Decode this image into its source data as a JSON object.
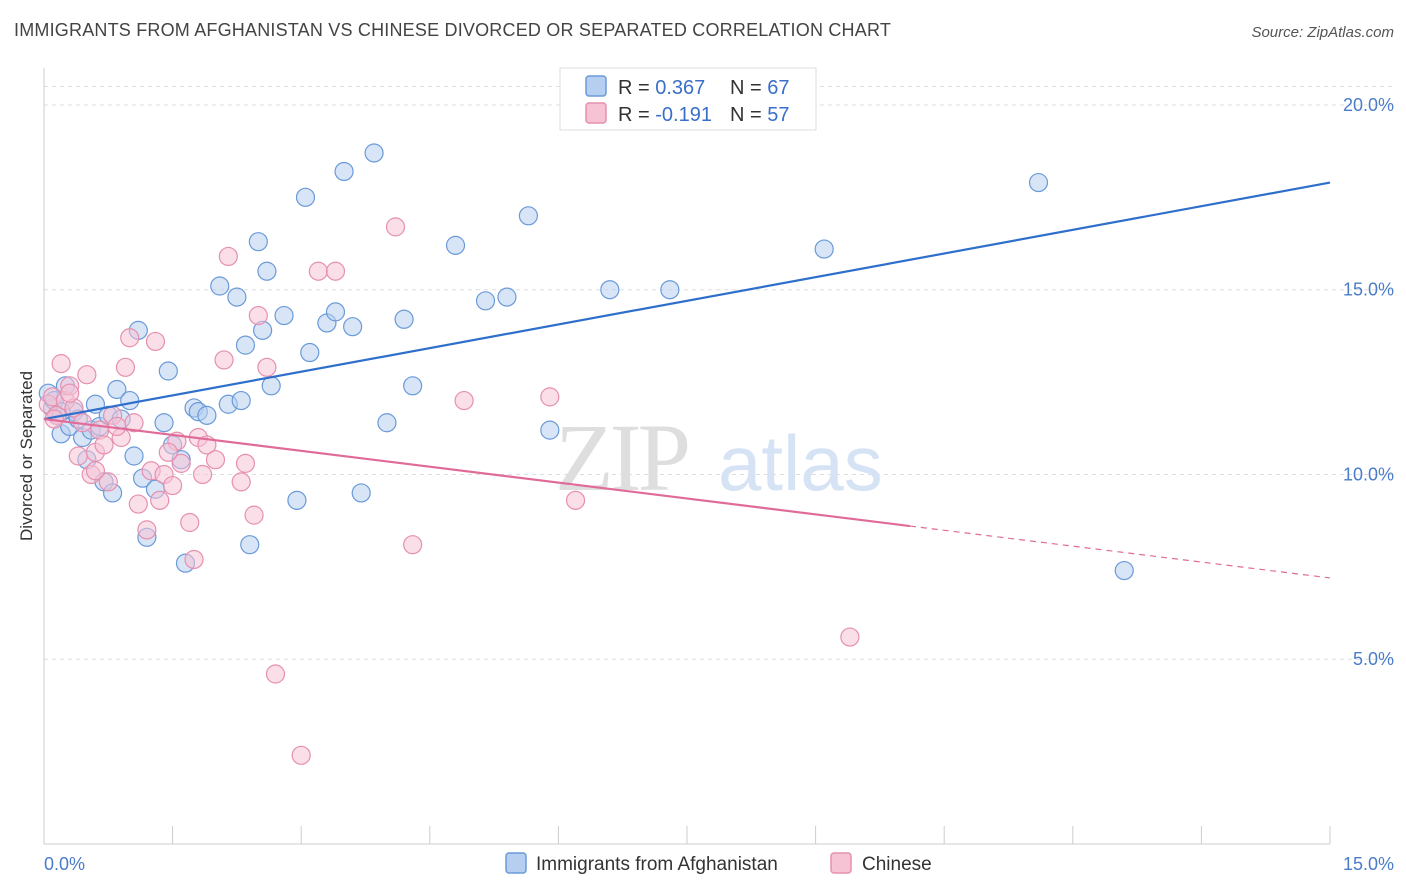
{
  "title": "IMMIGRANTS FROM AFGHANISTAN VS CHINESE DIVORCED OR SEPARATED CORRELATION CHART",
  "source": "Source: ZipAtlas.com",
  "watermark": {
    "zip": "ZIP",
    "atlas": "atlas"
  },
  "colors": {
    "blue_fill": "#b6cff0",
    "blue_stroke": "#6a9ad8",
    "blue_line": "#2f6fcc",
    "pink_fill": "#f6c3d5",
    "pink_stroke": "#e690b0",
    "pink_line": "#e06a98",
    "tick_text": "#4a7cc9",
    "grid": "#dddddd"
  },
  "chart_data": {
    "type": "scatter",
    "title": "IMMIGRANTS FROM AFGHANISTAN VS CHINESE DIVORCED OR SEPARATED CORRELATION CHART",
    "xlabel": "",
    "ylabel": "Divorced or Separated",
    "xlim": [
      0,
      15
    ],
    "ylim": [
      0,
      21
    ],
    "x_tick_labels": [
      "0.0%",
      "15.0%"
    ],
    "y_ticks": [
      5,
      10,
      15,
      20
    ],
    "y_tick_labels": [
      "5.0%",
      "10.0%",
      "15.0%",
      "20.0%"
    ],
    "grid": true,
    "legend_top": [
      {
        "r_label": "R = ",
        "r_value": "0.367",
        "n_label": "N = ",
        "n_value": "67"
      },
      {
        "r_label": "R = ",
        "r_value": "-0.191",
        "n_label": "N = ",
        "n_value": "57"
      }
    ],
    "legend_position": "top-center",
    "series": [
      {
        "name": "Immigrants from Afghanistan",
        "color": "#6a9ad8",
        "trend": {
          "x": [
            0,
            15
          ],
          "y": [
            11.5,
            17.9
          ],
          "dashed_from": null
        },
        "points": [
          [
            0.05,
            12.2
          ],
          [
            0.1,
            11.8
          ],
          [
            0.12,
            12.0
          ],
          [
            0.15,
            11.6
          ],
          [
            0.2,
            11.1
          ],
          [
            0.25,
            12.4
          ],
          [
            0.3,
            11.3
          ],
          [
            0.35,
            11.7
          ],
          [
            0.4,
            11.5
          ],
          [
            0.45,
            11.0
          ],
          [
            0.5,
            10.4
          ],
          [
            0.55,
            11.2
          ],
          [
            0.6,
            11.9
          ],
          [
            0.65,
            11.3
          ],
          [
            0.7,
            9.8
          ],
          [
            0.75,
            11.6
          ],
          [
            0.8,
            9.5
          ],
          [
            0.85,
            12.3
          ],
          [
            0.9,
            11.5
          ],
          [
            1.0,
            12.0
          ],
          [
            1.05,
            10.5
          ],
          [
            1.1,
            13.9
          ],
          [
            1.15,
            9.9
          ],
          [
            1.2,
            8.3
          ],
          [
            1.3,
            9.6
          ],
          [
            1.4,
            11.4
          ],
          [
            1.45,
            12.8
          ],
          [
            1.5,
            10.8
          ],
          [
            1.6,
            10.4
          ],
          [
            1.65,
            7.6
          ],
          [
            1.75,
            11.8
          ],
          [
            1.8,
            11.7
          ],
          [
            1.9,
            11.6
          ],
          [
            2.05,
            15.1
          ],
          [
            2.15,
            11.9
          ],
          [
            2.25,
            14.8
          ],
          [
            2.3,
            12.0
          ],
          [
            2.35,
            13.5
          ],
          [
            2.4,
            8.1
          ],
          [
            2.5,
            16.3
          ],
          [
            2.55,
            13.9
          ],
          [
            2.6,
            15.5
          ],
          [
            2.65,
            12.4
          ],
          [
            2.8,
            14.3
          ],
          [
            2.95,
            9.3
          ],
          [
            3.05,
            17.5
          ],
          [
            3.1,
            13.3
          ],
          [
            3.3,
            14.1
          ],
          [
            3.4,
            14.4
          ],
          [
            3.5,
            18.2
          ],
          [
            3.6,
            14.0
          ],
          [
            3.7,
            9.5
          ],
          [
            3.85,
            18.7
          ],
          [
            4.0,
            11.4
          ],
          [
            4.2,
            14.2
          ],
          [
            4.3,
            12.4
          ],
          [
            4.8,
            16.2
          ],
          [
            5.15,
            14.7
          ],
          [
            5.4,
            14.8
          ],
          [
            5.65,
            17.0
          ],
          [
            5.9,
            11.2
          ],
          [
            6.6,
            15.0
          ],
          [
            7.3,
            15.0
          ],
          [
            9.1,
            16.1
          ],
          [
            11.6,
            17.9
          ],
          [
            12.6,
            7.4
          ],
          [
            0.2,
            11.7
          ]
        ]
      },
      {
        "name": "Chinese",
        "color": "#e690b0",
        "trend": {
          "x": [
            0,
            15
          ],
          "y": [
            11.5,
            7.2
          ],
          "dashed_from": 10.1
        },
        "points": [
          [
            0.05,
            11.9
          ],
          [
            0.1,
            12.1
          ],
          [
            0.15,
            11.6
          ],
          [
            0.2,
            13.0
          ],
          [
            0.25,
            12.0
          ],
          [
            0.3,
            12.4
          ],
          [
            0.35,
            11.8
          ],
          [
            0.4,
            10.5
          ],
          [
            0.45,
            11.4
          ],
          [
            0.5,
            12.7
          ],
          [
            0.55,
            10.0
          ],
          [
            0.6,
            10.6
          ],
          [
            0.65,
            11.2
          ],
          [
            0.7,
            10.8
          ],
          [
            0.75,
            9.8
          ],
          [
            0.8,
            11.6
          ],
          [
            0.9,
            11.0
          ],
          [
            0.95,
            12.9
          ],
          [
            1.0,
            13.7
          ],
          [
            1.1,
            9.2
          ],
          [
            1.2,
            8.5
          ],
          [
            1.25,
            10.1
          ],
          [
            1.3,
            13.6
          ],
          [
            1.35,
            9.3
          ],
          [
            1.4,
            10.0
          ],
          [
            1.5,
            9.7
          ],
          [
            1.55,
            10.9
          ],
          [
            1.6,
            10.3
          ],
          [
            1.7,
            8.7
          ],
          [
            1.75,
            7.7
          ],
          [
            1.8,
            11.0
          ],
          [
            1.85,
            10.0
          ],
          [
            1.9,
            10.8
          ],
          [
            2.0,
            10.4
          ],
          [
            2.1,
            13.1
          ],
          [
            2.15,
            15.9
          ],
          [
            2.3,
            9.8
          ],
          [
            2.35,
            10.3
          ],
          [
            2.45,
            8.9
          ],
          [
            2.5,
            14.3
          ],
          [
            2.6,
            12.9
          ],
          [
            2.7,
            4.6
          ],
          [
            3.0,
            2.4
          ],
          [
            3.2,
            15.5
          ],
          [
            3.4,
            15.5
          ],
          [
            4.1,
            16.7
          ],
          [
            4.3,
            8.1
          ],
          [
            4.9,
            12.0
          ],
          [
            5.9,
            12.1
          ],
          [
            6.2,
            9.3
          ],
          [
            9.4,
            5.6
          ],
          [
            0.12,
            11.5
          ],
          [
            0.3,
            12.2
          ],
          [
            0.6,
            10.1
          ],
          [
            0.85,
            11.3
          ],
          [
            1.05,
            11.4
          ],
          [
            1.45,
            10.6
          ]
        ]
      }
    ]
  },
  "bottom_legend": [
    {
      "label": "Immigrants from Afghanistan"
    },
    {
      "label": "Chinese"
    }
  ]
}
